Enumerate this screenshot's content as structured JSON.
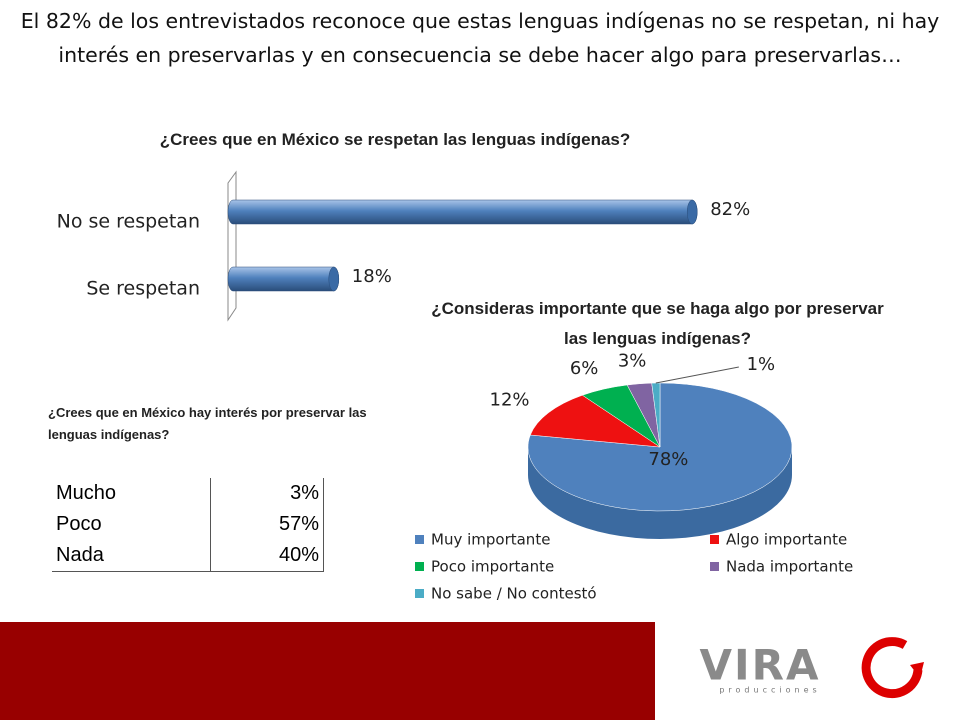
{
  "title": "El 82% de los entrevistados reconoce que estas lenguas indígenas no se respetan, ni hay interés en preservarlas y en consecuencia se debe hacer algo para preservarlas…",
  "chart_data": [
    {
      "type": "bar",
      "title": "¿Crees que en México se respetan las lenguas indígenas?",
      "categories": [
        "No se respetan",
        "Se respetan"
      ],
      "values": [
        82,
        18
      ],
      "value_labels": [
        "82%",
        "18%"
      ],
      "color": "#4f81bd"
    },
    {
      "type": "pie",
      "title": "¿Consideras importante que se haga algo por preservar las lenguas indígenas?",
      "categories": [
        "Muy importante",
        "Algo importante",
        "Poco importante",
        "Nada importante",
        "No sabe / No contestó"
      ],
      "values": [
        78,
        12,
        6,
        3,
        1
      ],
      "value_labels": [
        "78%",
        "12%",
        "6%",
        "3%",
        "1%"
      ],
      "colors": [
        "#4f81bd",
        "#ee1111",
        "#00b050",
        "#8064a2",
        "#4bacc6"
      ]
    }
  ],
  "table": {
    "title": "¿Crees que en México hay interés por preservar las lenguas indígenas?",
    "rows": [
      [
        "Mucho",
        "3%"
      ],
      [
        "Poco",
        "57%"
      ],
      [
        "Nada",
        "40%"
      ]
    ]
  },
  "logo": {
    "name": "VIRA",
    "tagline": "producciones"
  }
}
